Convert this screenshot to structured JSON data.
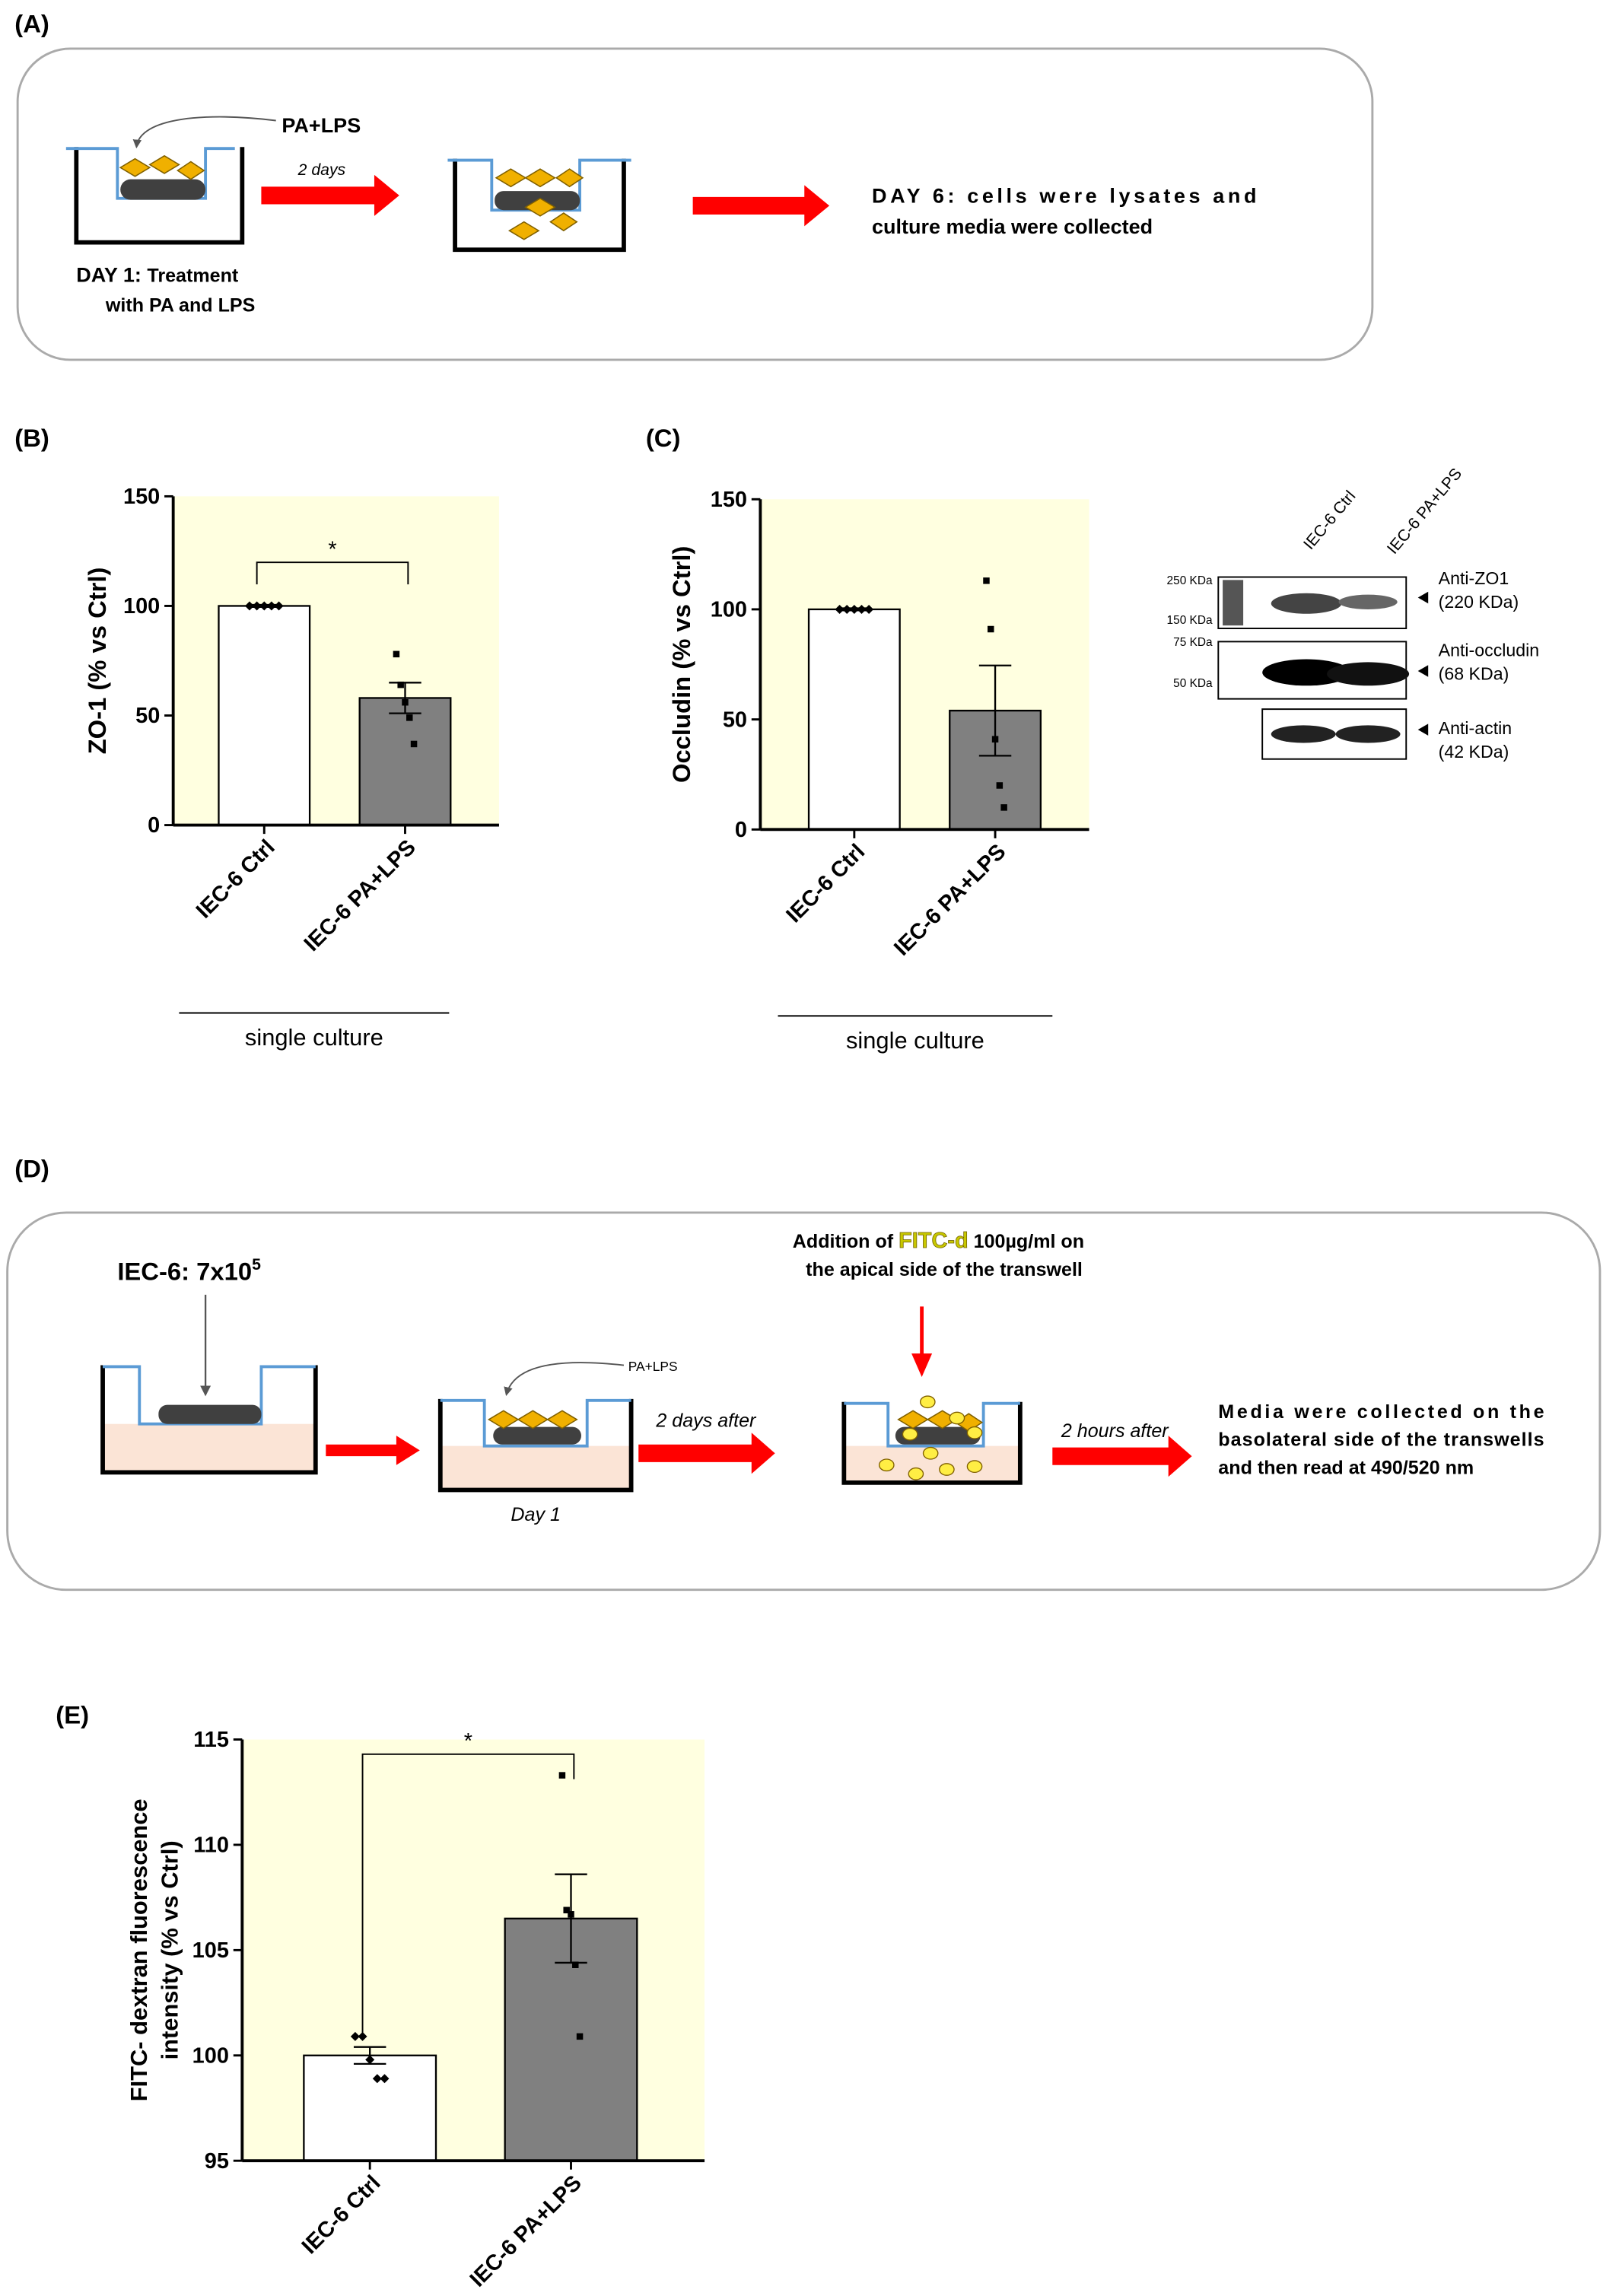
{
  "diagram_a": {
    "panel": "(A)",
    "treatment": "PA+LPS",
    "step_time": "2 days",
    "result": [
      "DAY 6: cells were lysates and",
      "culture media were collected"
    ],
    "day1_title": "DAY 1:",
    "day1_text": [
      "Treatment",
      "with PA and LPS"
    ]
  },
  "chart_data": [
    {
      "type": "bar",
      "panel": "(B)",
      "ylabel": "ZO-1 (% vs Ctrl)",
      "categories": [
        "IEC-6 Ctrl",
        "IEC-6 PA+LPS"
      ],
      "values": [
        100,
        58
      ],
      "errors": [
        0.5,
        7
      ],
      "points": [
        [
          100,
          100,
          100,
          100,
          100
        ],
        [
          78,
          64,
          56,
          49,
          37
        ]
      ],
      "colors": [
        "#ffffff",
        "#808080"
      ],
      "background": "#ffffe0",
      "significance": "*",
      "group_label": "single culture",
      "ylim": [
        0,
        150
      ],
      "yticks": [
        0,
        50,
        100,
        150
      ]
    },
    {
      "type": "bar",
      "panel": "(C)",
      "ylabel": "Occludin (% vs Ctrl)",
      "categories": [
        "IEC-6 Ctrl",
        "IEC-6 PA+LPS"
      ],
      "values": [
        100,
        54
      ],
      "errors": [
        0.5,
        20.5
      ],
      "points": [
        [
          100,
          100,
          100,
          100,
          100
        ],
        [
          113,
          91,
          41,
          20,
          10
        ]
      ],
      "colors": [
        "#ffffff",
        "#808080"
      ],
      "background": "#ffffe0",
      "group_label": "single culture",
      "ylim": [
        0,
        150
      ],
      "yticks": [
        0,
        50,
        100,
        150
      ]
    },
    {
      "type": "bar",
      "panel": "(E)",
      "ylabel": [
        "FITC- dextran fluorescence",
        "intensity (% vs Ctrl)"
      ],
      "categories": [
        "IEC-6 Ctrl",
        "IEC-6 PA+LPS"
      ],
      "values": [
        100,
        106.5
      ],
      "errors": [
        0.4,
        2.1
      ],
      "points": [
        [
          100.9,
          100.9,
          99.8,
          98.9,
          98.9
        ],
        [
          113.3,
          106.9,
          106.7,
          104.3,
          100.9
        ]
      ],
      "colors": [
        "#ffffff",
        "#808080"
      ],
      "background": "#ffffe0",
      "significance": "*",
      "ylim": [
        95,
        115
      ],
      "yticks": [
        95,
        100,
        105,
        110,
        115
      ]
    }
  ],
  "blot": {
    "lanes": [
      "IEC-6 Ctrl",
      "IEC-6 PA+LPS"
    ],
    "markers": [
      "250 KDa",
      "150 KDa",
      "75 KDa",
      "50 KDa"
    ],
    "antibodies": [
      {
        "name": "Anti-ZO1",
        "size": "(220 KDa)"
      },
      {
        "name": "Anti-occludin",
        "size": "(68 KDa)"
      },
      {
        "name": "Anti-actin",
        "size": "(42 KDa)"
      }
    ]
  },
  "diagram_d": {
    "panel": "(D)",
    "seeding": "IEC-6: 7x10",
    "seeding_exp": "5",
    "treatment": "PA+LPS",
    "day": "Day 1",
    "step1_time": "2 days after",
    "step2_time": "2 hours after",
    "addition": [
      "Addition of ",
      "FITC-d",
      " 100µg/ml on"
    ],
    "addition_line2": "the apical side of the transwell",
    "result": [
      "Media were collected on the",
      "basolateral side of the transwells",
      "and then read at 490/520 nm"
    ]
  }
}
